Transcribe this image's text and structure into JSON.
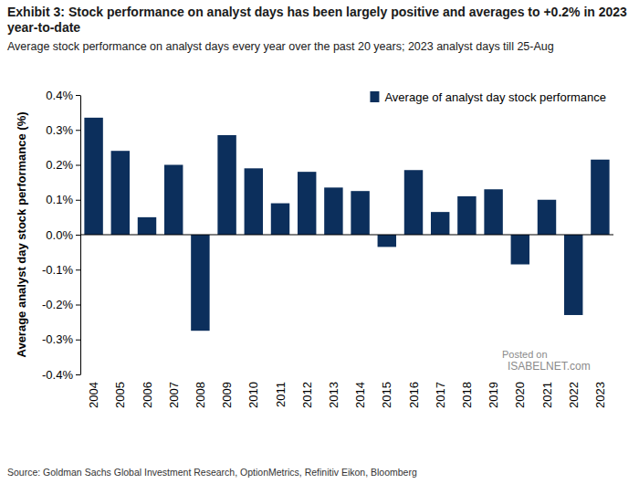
{
  "chart_data": {
    "type": "bar",
    "title": "Exhibit 3: Stock performance on analyst days has been largely positive and averages to +0.2% in 2023 year-to-date",
    "subtitle": "Average stock performance on analyst days every year over the past 20 years; 2023 analyst days till 25-Aug",
    "y_label": "Average analyst day stock performance (%)",
    "source": "Source: Goldman Sachs Global Investment Research, OptionMetrics, Refinitiv Eikon, Bloomberg",
    "annotations": [
      "Posted on",
      "ISABELNET.com"
    ],
    "categories": [
      "2004",
      "2005",
      "2006",
      "2007",
      "2008",
      "2009",
      "2010",
      "2011",
      "2012",
      "2013",
      "2014",
      "2015",
      "2016",
      "2017",
      "2018",
      "2019",
      "2020",
      "2021",
      "2022",
      "2023"
    ],
    "series": [
      {
        "name": "Average of analyst day stock performance",
        "color": "#0c2f5c",
        "values": [
          0.335,
          0.24,
          0.05,
          0.2,
          -0.275,
          0.285,
          0.19,
          0.09,
          0.18,
          0.135,
          0.125,
          -0.035,
          0.185,
          0.065,
          0.11,
          0.13,
          -0.085,
          0.1,
          -0.23,
          0.215
        ]
      }
    ],
    "ylim": [
      -0.4,
      0.4
    ],
    "yticks": [
      {
        "value": -0.4,
        "label": "-0.4%"
      },
      {
        "value": -0.3,
        "label": "-0.3%"
      },
      {
        "value": -0.2,
        "label": "-0.2%"
      },
      {
        "value": -0.1,
        "label": "-0.1%"
      },
      {
        "value": 0,
        "label": "0.0%"
      },
      {
        "value": 0.1,
        "label": "0.1%"
      },
      {
        "value": 0.2,
        "label": "0.2%"
      },
      {
        "value": 0.3,
        "label": "0.3%"
      },
      {
        "value": 0.4,
        "label": "0.4%"
      }
    ],
    "grid": false,
    "legend": "top-right"
  }
}
